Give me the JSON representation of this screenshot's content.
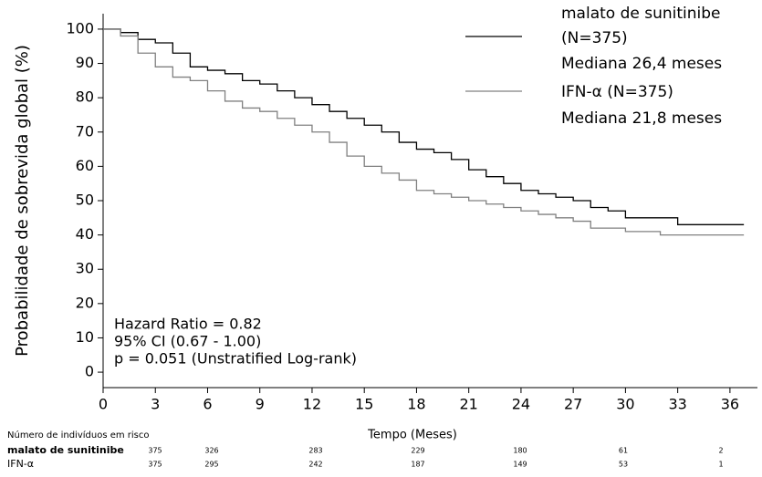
{
  "chart_data": {
    "type": "line",
    "step": true,
    "x_label": "Tempo (Meses)",
    "y_label": "Probabilidade de sobrevida global (%)",
    "x": [
      0,
      1,
      2,
      3,
      4,
      5,
      6,
      7,
      8,
      9,
      10,
      11,
      12,
      13,
      14,
      15,
      16,
      17,
      18,
      19,
      20,
      21,
      22,
      23,
      24,
      25,
      26,
      27,
      28,
      29,
      30,
      31,
      32,
      33,
      36.8
    ],
    "series": [
      {
        "name": "malato de sunitinibe (N=375)",
        "color": "#000000",
        "median_label": "Mediana 26,4 meses",
        "values": [
          100,
          99,
          97,
          96,
          93,
          89,
          88,
          87,
          85,
          84,
          82,
          80,
          78,
          76,
          74,
          72,
          70,
          67,
          65,
          64,
          62,
          59,
          57,
          55,
          53,
          52,
          51,
          50,
          48,
          47,
          45,
          45,
          45,
          43,
          43
        ]
      },
      {
        "name": "IFN-α (N=375)",
        "color": "#808080",
        "median_label": "Mediana 21,8 meses",
        "values": [
          100,
          98,
          93,
          89,
          86,
          85,
          82,
          79,
          77,
          76,
          74,
          72,
          70,
          67,
          63,
          60,
          58,
          56,
          53,
          52,
          51,
          50,
          49,
          48,
          47,
          46,
          45,
          44,
          42,
          42,
          41,
          41,
          40,
          40,
          40
        ]
      }
    ],
    "xlim": [
      0,
      37.5
    ],
    "xticks": [
      0,
      3,
      6,
      9,
      12,
      15,
      18,
      21,
      24,
      27,
      30,
      33,
      36
    ],
    "ylim": [
      -4.5,
      104.5
    ],
    "yticks": [
      0,
      10,
      20,
      30,
      40,
      50,
      60,
      70,
      80,
      90,
      100
    ],
    "annotations": [
      "Hazard Ratio = 0.82",
      "95% CI (0.67 - 1.00)",
      "p = 0.051 (Unstratified Log-rank)"
    ],
    "risk_table": {
      "title": "Número de indivíduos em risco",
      "rows": [
        {
          "name": "malato de sunitinibe",
          "counts": [
            375,
            326,
            283,
            229,
            180,
            61,
            2
          ]
        },
        {
          "name": "IFN-α",
          "counts": [
            375,
            295,
            242,
            187,
            149,
            53,
            1
          ]
        }
      ]
    }
  }
}
